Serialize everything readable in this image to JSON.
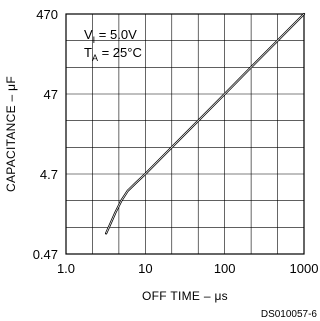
{
  "chart_data": {
    "type": "line",
    "title": "",
    "xlabel": "OFF TIME – μs",
    "ylabel": "CAPACITANCE – μF",
    "x_scale": "log",
    "y_scale": "log",
    "xlim": [
      1,
      1000
    ],
    "ylim": [
      0.47,
      470
    ],
    "x_ticks": [
      "1.0",
      "10",
      "100",
      "1000"
    ],
    "y_ticks": [
      "470",
      "47",
      "4.7",
      "0.47"
    ],
    "grid": true,
    "annotations": {
      "line1_main": "V",
      "line1_sub": "I",
      "line1_value": " = 5.0V",
      "line2_main": "T",
      "line2_sub": "A",
      "line2_value": " = 25°C"
    },
    "series": [
      {
        "x": [
          3.2,
          3.6,
          4.2,
          5.0,
          6.0,
          7.5,
          10,
          20,
          50,
          100,
          200,
          500,
          1000
        ],
        "y": [
          0.85,
          1.1,
          1.55,
          2.2,
          2.9,
          3.6,
          4.7,
          9.4,
          23.5,
          47,
          94,
          235,
          470
        ]
      }
    ]
  },
  "footer_id": "DS010057-6"
}
